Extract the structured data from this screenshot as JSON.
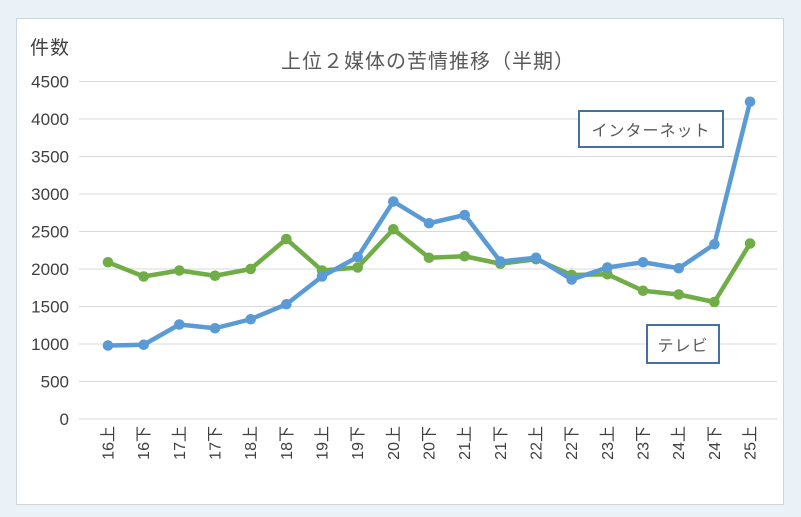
{
  "window": {
    "background": "#eaf2f8",
    "card_background": "#ffffff",
    "card_border": "#ccd6de"
  },
  "chart_data": {
    "type": "line",
    "title": "上位２媒体の苦情推移（半期）",
    "ylabel": "件数",
    "xlabel": "",
    "grid": true,
    "ylim": [
      0,
      4500
    ],
    "ytick_step": 500,
    "yticks": [
      0,
      500,
      1000,
      1500,
      2000,
      2500,
      3000,
      3500,
      4000,
      4500
    ],
    "gridline_color": "#d9d9d9",
    "axis_text_color": "#404040",
    "title_color": "#595959",
    "legend_position": "floating-callouts-on-plot",
    "categories": [
      "16上",
      "16下",
      "17上",
      "17下",
      "18上",
      "18下",
      "19上",
      "19下",
      "20上",
      "20下",
      "21上",
      "21下",
      "22上",
      "22下",
      "23上",
      "23下",
      "24上",
      "24下",
      "25上"
    ],
    "series": [
      {
        "id": "internet",
        "name": "インターネット",
        "color": "#5B9BD5",
        "values": [
          980,
          990,
          1260,
          1210,
          1330,
          1530,
          1900,
          2160,
          2900,
          2610,
          2720,
          2100,
          2150,
          1860,
          2020,
          2090,
          2010,
          2330,
          4230
        ]
      },
      {
        "id": "tv",
        "name": "テレビ",
        "color": "#70AD47",
        "values": [
          2090,
          1900,
          1980,
          1910,
          2000,
          2400,
          1980,
          2020,
          2530,
          2150,
          2170,
          2070,
          2130,
          1920,
          1930,
          1710,
          1660,
          1560,
          2340
        ]
      }
    ],
    "annotations": [
      {
        "id": "internet",
        "text": "インターネット",
        "border_color": "#44719f"
      },
      {
        "id": "tv",
        "text": "テレビ",
        "border_color": "#44719f"
      }
    ]
  }
}
